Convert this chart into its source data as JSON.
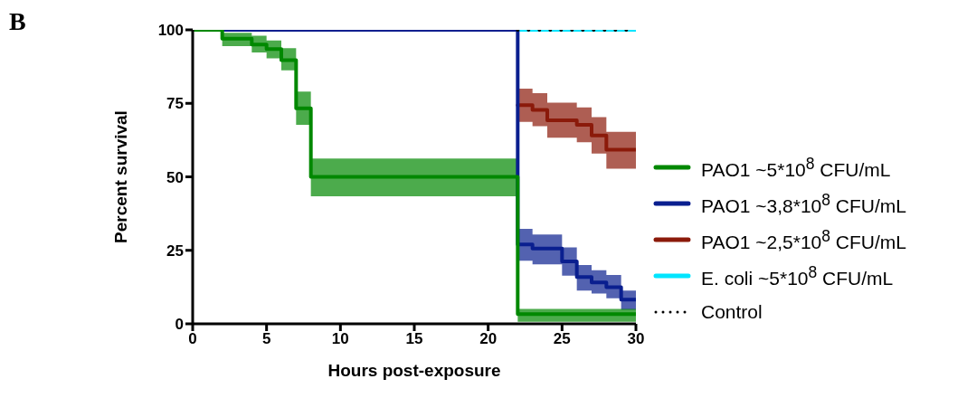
{
  "chart_data": {
    "type": "step",
    "title": "B",
    "xlabel": "Hours post-exposure",
    "ylabel": "Percent survival",
    "xlim": [
      0,
      30
    ],
    "xticks": [
      0,
      5,
      10,
      15,
      20,
      25,
      30
    ],
    "ylim": [
      0,
      100
    ],
    "yticks": [
      0,
      25,
      50,
      75,
      100
    ],
    "grid": false,
    "legend": "right",
    "series": [
      {
        "name": "PAO1 ~5*10$^{8}$ CFU/mL",
        "color": "#008800",
        "x": [
          0,
          2,
          4,
          5,
          6,
          7,
          8,
          22,
          30
        ],
        "values": [
          100,
          97,
          95,
          93.5,
          89.7,
          73.3,
          50,
          3.3,
          3.3
        ],
        "lower": [
          100,
          94.5,
          92.3,
          90.3,
          86.2,
          67.7,
          43.4,
          0.7,
          0.7
        ],
        "upper": [
          100,
          99,
          98,
          96.4,
          93.8,
          79,
          56.2,
          5.1,
          5.1
        ]
      },
      {
        "name": "PAO1 ~3,8*10$^{8}$ CFU/mL",
        "color": "#0a1f8f",
        "x": [
          0,
          22,
          23,
          25,
          26,
          27,
          28,
          29,
          30
        ],
        "values": [
          100,
          27,
          25.6,
          21.2,
          15.9,
          14.1,
          12.5,
          8.2,
          8.2
        ],
        "lower": [
          100,
          21.5,
          20.2,
          16.4,
          11.3,
          10.3,
          8.7,
          4.8,
          4.8
        ],
        "upper": [
          100,
          32.3,
          30.4,
          26,
          20,
          18.2,
          16.6,
          11.3,
          11.3
        ]
      },
      {
        "name": "PAO1 ~2,5*10$^{8}$ CFU/mL",
        "color": "#8b1a0a",
        "x": [
          22,
          23,
          24,
          26,
          27,
          28,
          30
        ],
        "values": [
          74.4,
          72.8,
          69.2,
          67.7,
          64.1,
          59.2,
          59.2
        ],
        "lower": [
          68.7,
          67.2,
          63.3,
          61.8,
          57.9,
          52.8,
          52.8
        ],
        "upper": [
          80,
          78.5,
          75.2,
          73.6,
          70.3,
          65.3,
          65.3
        ]
      },
      {
        "name": "E. coli ~5*10$^{8}$ CFU/mL",
        "color": "#00e5ff",
        "x": [
          22,
          30
        ],
        "values": [
          100,
          100
        ]
      },
      {
        "name": "Control",
        "color": "#000000",
        "line_style": "dotted",
        "x": [
          22,
          30
        ],
        "values": [
          100,
          100
        ]
      }
    ]
  }
}
